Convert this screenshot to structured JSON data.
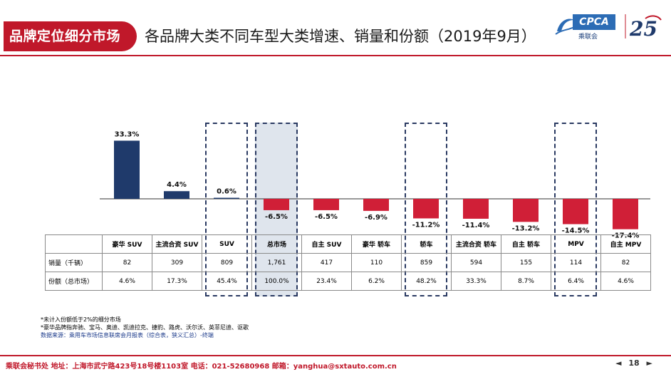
{
  "header": {
    "badge": "品牌定位细分市场",
    "title": "各品牌大类不同车型大类增速、销量和份额（2019年9月）",
    "logo_text": "CPCA",
    "logo_sub": "乘联会",
    "anniversary_text": "25"
  },
  "chart_data": {
    "type": "bar",
    "categories": [
      "豪华 SUV",
      "主流合资 SUV",
      "SUV",
      "总市场",
      "自主 SUV",
      "豪华 轿车",
      "轿车",
      "主流合资 轿车",
      "自主 轿车",
      "MPV",
      "自主 MPV"
    ],
    "values": [
      33.3,
      4.4,
      0.6,
      -6.5,
      -6.5,
      -6.9,
      -11.2,
      -11.4,
      -13.2,
      -14.5,
      -17.4
    ],
    "value_labels": [
      "33.3%",
      "4.4%",
      "0.6%",
      "-6.5%",
      "-6.5%",
      "-6.9%",
      "-11.2%",
      "-11.4%",
      "-13.2%",
      "-14.5%",
      "-17.4%"
    ],
    "colors": {
      "positive": "#1f3a6b",
      "negative": "#d01f37"
    },
    "highlighted_categories": [
      "SUV",
      "总市场",
      "轿车",
      "MPV"
    ],
    "shaded_category": "总市场"
  },
  "table": {
    "row_labels": [
      "销量（千辆）",
      "份额（总市场）"
    ],
    "sales": [
      "82",
      "309",
      "809",
      "1,761",
      "417",
      "110",
      "859",
      "594",
      "155",
      "114",
      "82"
    ],
    "share": [
      "4.6%",
      "17.3%",
      "45.4%",
      "100.0%",
      "23.4%",
      "6.2%",
      "48.2%",
      "33.3%",
      "8.7%",
      "6.4%",
      "4.6%"
    ]
  },
  "notes": {
    "line1": "*未计入份额低于2%的细分市场",
    "line2": "*豪华品牌指奔驰、宝马、奥迪、凯迪拉克、捷豹、路虎、沃尔沃、英菲尼迪、讴歌",
    "source": "数据来源：乘用车市场信息联席会月报表（综合表，狭义汇总）-终端"
  },
  "footer": {
    "text": "乘联会秘书处 地址：上海市武宁路423号18号楼1103室 电话：021-52680968 邮箱：yanghua@sxtauto.com.cn",
    "page": "18"
  }
}
